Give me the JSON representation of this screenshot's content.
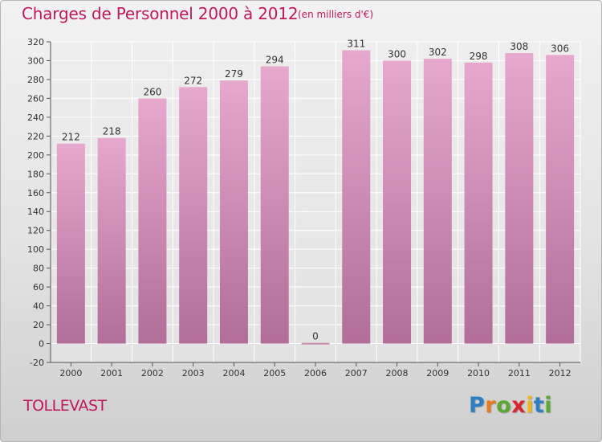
{
  "header": {
    "title": "Charges de Personnel 2000 à 2012",
    "subtitle": "(en milliers d'€)"
  },
  "footer": {
    "commune": "TOLLEVAST",
    "logo": {
      "letters": [
        "P",
        "r",
        "o",
        "x",
        "i",
        "t",
        "i"
      ],
      "colors": [
        "#2e7ec1",
        "#e87a1c",
        "#5aa832",
        "#d6262f",
        "#f0b619",
        "#2e7ec1",
        "#5aa832"
      ]
    }
  },
  "chart_data": {
    "type": "bar",
    "title": "Charges de Personnel 2000 à 2012",
    "subtitle": "(en milliers d'€)",
    "categories": [
      "2000",
      "2001",
      "2002",
      "2003",
      "2004",
      "2005",
      "2006",
      "2007",
      "2008",
      "2009",
      "2010",
      "2011",
      "2012"
    ],
    "values": [
      212,
      218,
      260,
      272,
      279,
      294,
      0,
      311,
      300,
      302,
      298,
      308,
      306
    ],
    "data_labels": [
      "212",
      "218",
      "260",
      "272",
      "279",
      "294",
      "0",
      "311",
      "300",
      "302",
      "298",
      "308",
      "306"
    ],
    "ylim": [
      -20,
      320
    ],
    "yticks": [
      -20,
      0,
      20,
      40,
      60,
      80,
      100,
      120,
      140,
      160,
      180,
      200,
      220,
      240,
      260,
      280,
      300,
      320
    ],
    "grid": true,
    "colors": {
      "bar_top": "#e6a8cd",
      "bar_bottom": "#b16e98",
      "text": "#333333",
      "grid": "#ffffff"
    }
  }
}
